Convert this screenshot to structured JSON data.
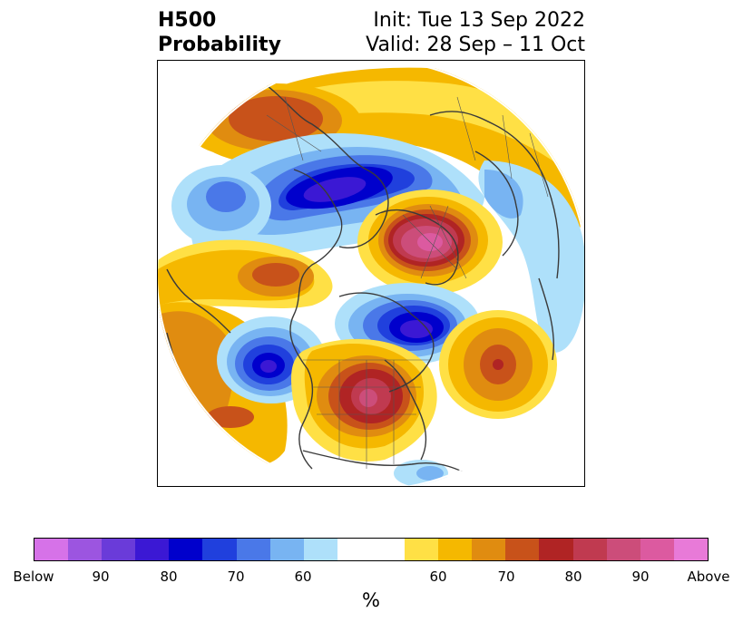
{
  "title": {
    "left_line1": "H500",
    "left_line2": "Probability",
    "right_line1": "Init: Tue 13 Sep 2022",
    "right_line2": "Valid: 28 Sep – 11 Oct"
  },
  "colorbar": {
    "colors": [
      "#d672e8",
      "#9c55e0",
      "#6a3bd9",
      "#3b18d4",
      "#0000cc",
      "#2040dd",
      "#4a78e8",
      "#78b4f2",
      "#aee0fa",
      "#ffffff",
      "#ffffff",
      "#ffe045",
      "#f5b800",
      "#e08c10",
      "#c8521a",
      "#b02424",
      "#c03a50",
      "#cc4d7a",
      "#dc5aa0",
      "#e87ad8"
    ],
    "tick_labels": [
      "Below",
      "90",
      "80",
      "70",
      "60",
      "60",
      "70",
      "80",
      "90",
      "Above"
    ],
    "unit": "%"
  }
}
